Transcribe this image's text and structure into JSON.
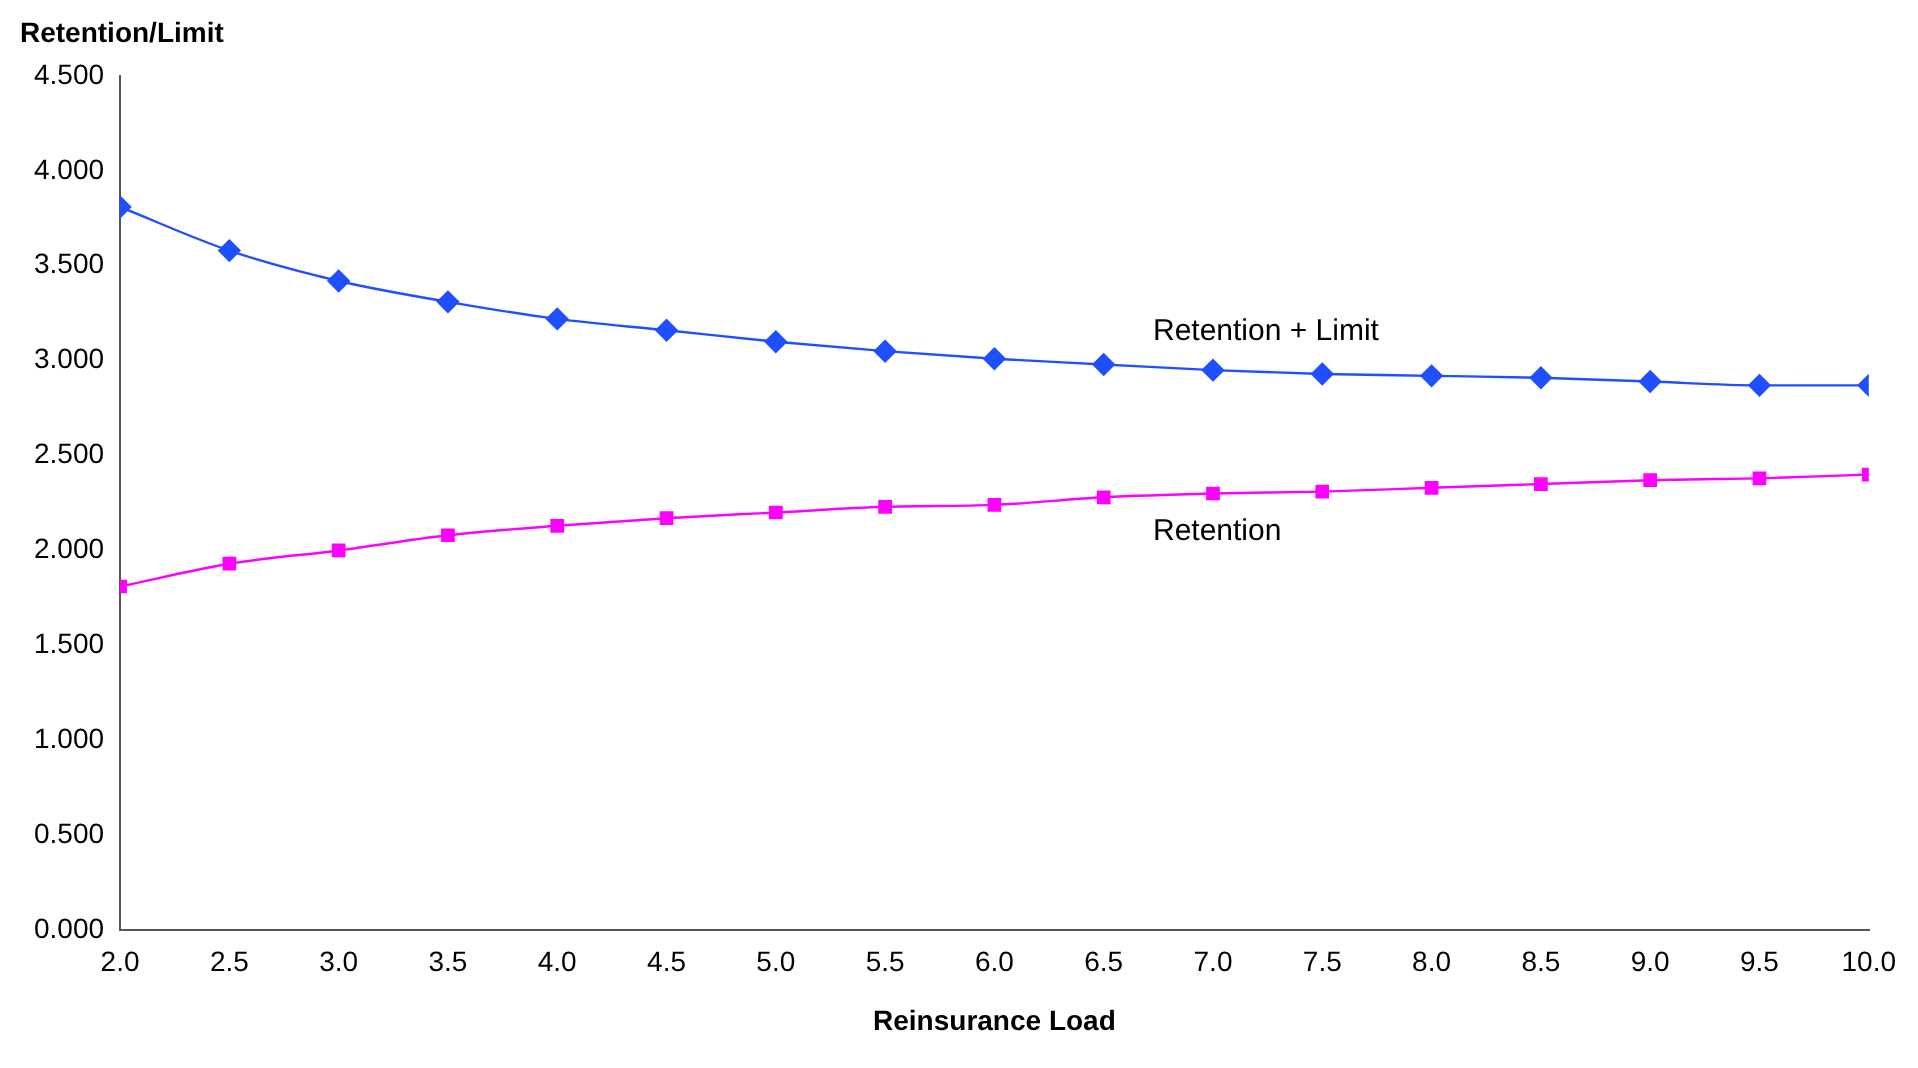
{
  "chart_data": {
    "type": "line",
    "ylabel": "Retention/Limit",
    "xlabel": "Reinsurance Load",
    "x": [
      2.0,
      2.5,
      3.0,
      3.5,
      4.0,
      4.5,
      5.0,
      5.5,
      6.0,
      6.5,
      7.0,
      7.5,
      8.0,
      8.5,
      9.0,
      9.5,
      10.0
    ],
    "series": [
      {
        "name": "Retention + Limit",
        "color": "#1f4fff",
        "marker": "diamond",
        "values": [
          3.81,
          3.58,
          3.42,
          3.31,
          3.22,
          3.16,
          3.1,
          3.05,
          3.01,
          2.98,
          2.95,
          2.93,
          2.92,
          2.91,
          2.89,
          2.87,
          2.87
        ]
      },
      {
        "name": "Retention",
        "color": "#ff00ff",
        "marker": "square",
        "values": [
          1.81,
          1.93,
          2.0,
          2.08,
          2.13,
          2.17,
          2.2,
          2.23,
          2.24,
          2.28,
          2.3,
          2.31,
          2.33,
          2.35,
          2.37,
          2.38,
          2.4
        ]
      }
    ],
    "xlim": [
      2.0,
      10.0
    ],
    "xticks": [
      {
        "value": 2.0,
        "label": "2.0"
      },
      {
        "value": 2.5,
        "label": "2.5"
      },
      {
        "value": 3.0,
        "label": "3.0"
      },
      {
        "value": 3.5,
        "label": "3.5"
      },
      {
        "value": 4.0,
        "label": "4.0"
      },
      {
        "value": 4.5,
        "label": "4.5"
      },
      {
        "value": 5.0,
        "label": "5.0"
      },
      {
        "value": 5.5,
        "label": "5.5"
      },
      {
        "value": 6.0,
        "label": "6.0"
      },
      {
        "value": 6.5,
        "label": "6.5"
      },
      {
        "value": 7.0,
        "label": "7.0"
      },
      {
        "value": 7.5,
        "label": "7.5"
      },
      {
        "value": 8.0,
        "label": "8.0"
      },
      {
        "value": 8.5,
        "label": "8.5"
      },
      {
        "value": 9.0,
        "label": "9.0"
      },
      {
        "value": 9.5,
        "label": "9.5"
      },
      {
        "value": 10.0,
        "label": "10.0"
      }
    ],
    "ylim": [
      0,
      4.5
    ],
    "yticks": [
      {
        "value": 0,
        "label": "0.000"
      },
      {
        "value": 0.5,
        "label": "0.500"
      },
      {
        "value": 1.0,
        "label": "1.000"
      },
      {
        "value": 1.5,
        "label": "1.500"
      },
      {
        "value": 2.0,
        "label": "2.000"
      },
      {
        "value": 2.5,
        "label": "2.500"
      },
      {
        "value": 3.0,
        "label": "3.000"
      },
      {
        "value": 3.5,
        "label": "3.500"
      },
      {
        "value": 4.0,
        "label": "4.000"
      },
      {
        "value": 4.5,
        "label": "4.500"
      }
    ],
    "grid": false,
    "legend": false
  }
}
